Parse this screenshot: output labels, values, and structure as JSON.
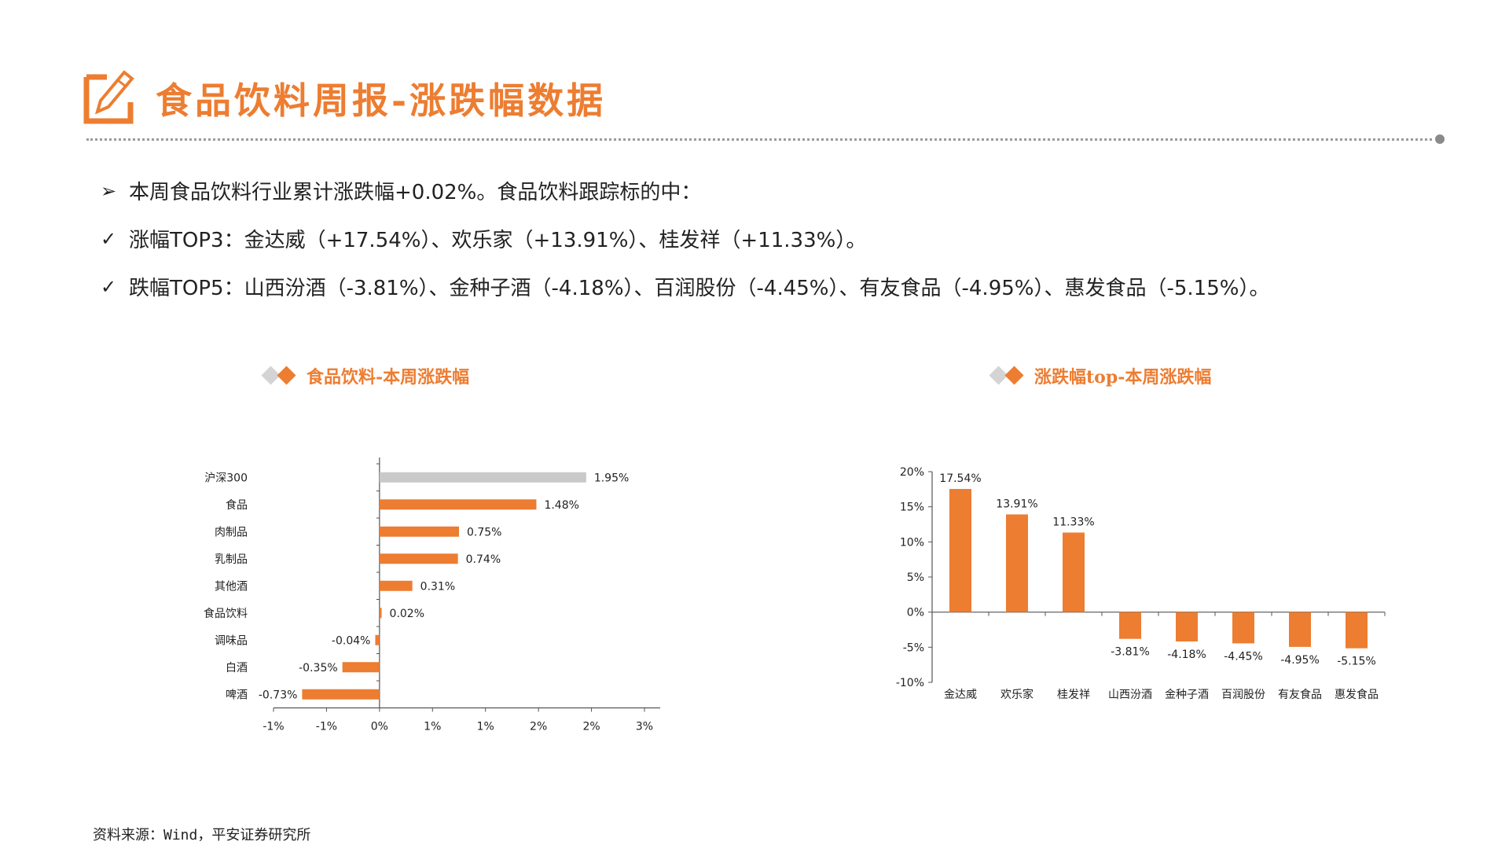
{
  "header": {
    "title": "食品饮料周报-涨跌幅数据",
    "accent_color": "#ED7D31",
    "icon": "pencil-edit-icon"
  },
  "bullets": [
    {
      "mark": "➢",
      "text": "本周食品饮料行业累计涨跌幅+0.02%。食品饮料跟踪标的中："
    },
    {
      "mark": "✓",
      "text": "涨幅TOP3：金达威（+17.54%）、欢乐家（+13.91%）、桂发祥（+11.33%）。"
    },
    {
      "mark": "✓",
      "text": "跌幅TOP5：山西汾酒（-3.81%）、金种子酒（-4.18%）、百润股份（-4.45%）、有友食品（-4.95%）、惠发食品（-5.15%）。"
    }
  ],
  "chart_data": [
    {
      "type": "bar",
      "orientation": "horizontal",
      "title": "食品饮料-本周涨跌幅",
      "categories": [
        "沪深300",
        "食品",
        "肉制品",
        "乳制品",
        "其他酒",
        "食品饮料",
        "调味品",
        "白酒",
        "啤酒"
      ],
      "values": [
        1.95,
        1.48,
        0.75,
        0.74,
        0.31,
        0.02,
        -0.04,
        -0.35,
        -0.73
      ],
      "data_labels": [
        "1.95%",
        "1.48%",
        "0.75%",
        "0.74%",
        "0.31%",
        "0.02%",
        "-0.04%",
        "-0.35%",
        "-0.73%"
      ],
      "xlim": [
        -1.0,
        2.5
      ],
      "x_tick_labels": [
        "-1%",
        "-1%",
        "0%",
        "1%",
        "1%",
        "2%",
        "2%",
        "3%"
      ],
      "unit": "%",
      "bar_colors": {
        "highlight": "#C9C9C9",
        "default": "#ED7D31"
      },
      "highlight_category": "沪深300",
      "grid": false
    },
    {
      "type": "bar",
      "orientation": "vertical",
      "title": "涨跌幅top-本周涨跌幅",
      "categories": [
        "金达威",
        "欢乐家",
        "桂发祥",
        "山西汾酒",
        "金种子酒",
        "百润股份",
        "有友食品",
        "惠发食品"
      ],
      "values": [
        17.54,
        13.91,
        11.33,
        -3.81,
        -4.18,
        -4.45,
        -4.95,
        -5.15
      ],
      "data_labels": [
        "17.54%",
        "13.91%",
        "11.33%",
        "-3.81%",
        "-4.18%",
        "-4.45%",
        "-4.95%",
        "-5.15%"
      ],
      "ylim": [
        -10,
        20
      ],
      "y_tick_labels": [
        "20%",
        "15%",
        "10%",
        "5%",
        "0%",
        "-5%",
        "-10%"
      ],
      "unit": "%",
      "bar_color": "#ED7D31",
      "grid": false
    }
  ],
  "footer": {
    "source": "资料来源：Wind，平安证券研究所"
  }
}
